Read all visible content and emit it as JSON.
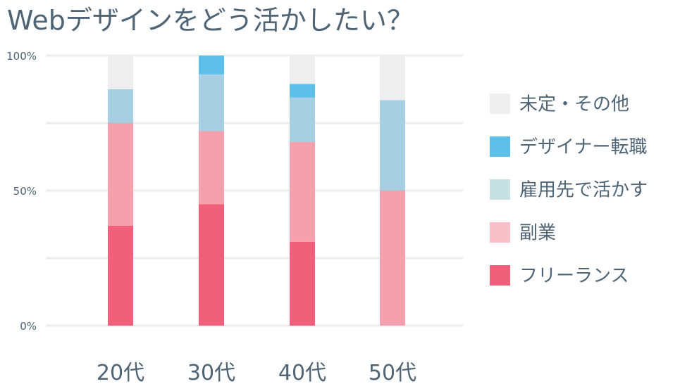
{
  "chart_data": {
    "type": "bar",
    "stacked": true,
    "title": "Webデザインをどう活かしたい？",
    "categories": [
      "20代",
      "30代",
      "40代",
      "50代"
    ],
    "ylim": [
      0,
      100
    ],
    "y_ticks": [
      {
        "value": 0,
        "label": "0%"
      },
      {
        "value": 50,
        "label": "50%"
      },
      {
        "value": 100,
        "label": "100%"
      }
    ],
    "minor_gridlines": [
      25,
      75
    ],
    "grid": true,
    "legend_position": "right",
    "series": [
      {
        "name": "フリーランス",
        "color": "#f0607a",
        "values": [
          37,
          45,
          31,
          0
        ]
      },
      {
        "name": "副業",
        "color": "#f5a0ad",
        "values": [
          38,
          27,
          37,
          50
        ]
      },
      {
        "name": "雇用先で活かす",
        "color": "#a6cfe2",
        "values": [
          12.5,
          21,
          16.5,
          33.5
        ]
      },
      {
        "name": "デザイナー転職",
        "color": "#5ebfe8",
        "values": [
          0,
          7,
          5,
          0
        ]
      },
      {
        "name": "未定・その他",
        "color": "#eeeeee",
        "values": [
          12.5,
          0,
          10.5,
          16.5
        ]
      }
    ],
    "legend": [
      {
        "label": "未定・その他",
        "color": "#efefef"
      },
      {
        "label": "デザイナー転職",
        "color": "#5ebfe8"
      },
      {
        "label": "雇用先で活かす",
        "color": "#c6e0e4"
      },
      {
        "label": "副業",
        "color": "#f7c0c9"
      },
      {
        "label": "フリーランス",
        "color": "#f0607a"
      }
    ]
  },
  "colors": {
    "text": "#4f6575",
    "gridline": "#ececec"
  }
}
